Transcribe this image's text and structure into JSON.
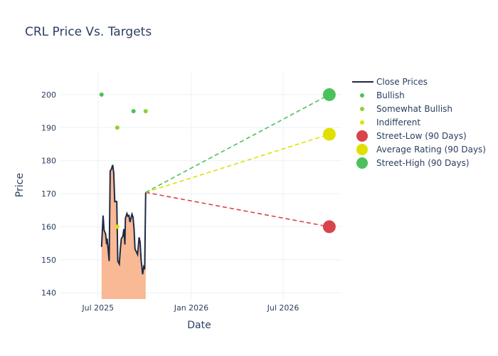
{
  "chart_data": {
    "type": "line",
    "title": "CRL Price Vs. Targets",
    "xlabel": "Date",
    "ylabel": "Price",
    "xlim": [
      "2025-04-18",
      "2026-10-24"
    ],
    "ylim": [
      138.1,
      207.1
    ],
    "grid": true,
    "legend_placement": "top-right",
    "x_ticks": [
      {
        "date": "2025-07-01",
        "label": "Jul 2025"
      },
      {
        "date": "2026-01-01",
        "label": "Jan 2026"
      },
      {
        "date": "2026-07-01",
        "label": "Jul 2026"
      }
    ],
    "y_ticks": [
      140,
      150,
      160,
      170,
      180,
      190,
      200
    ],
    "close_prices": {
      "name": "Close Prices",
      "color": "#1f2a44",
      "fill": "#f8b994",
      "dates": [
        "2025-07-08",
        "2025-07-11",
        "2025-07-13",
        "2025-07-16",
        "2025-07-18",
        "2025-07-19",
        "2025-07-23",
        "2025-07-25",
        "2025-07-27",
        "2025-07-30",
        "2025-08-01",
        "2025-08-03",
        "2025-08-06",
        "2025-08-07",
        "2025-08-09",
        "2025-08-12",
        "2025-08-14",
        "2025-08-16",
        "2025-08-19",
        "2025-08-21",
        "2025-08-23",
        "2025-08-24",
        "2025-08-27",
        "2025-08-29",
        "2025-08-31",
        "2025-09-02",
        "2025-09-06",
        "2025-09-08",
        "2025-09-10",
        "2025-09-12",
        "2025-09-14",
        "2025-09-17",
        "2025-09-20",
        "2025-09-22",
        "2025-09-24",
        "2025-09-27",
        "2025-09-29",
        "2025-10-01",
        "2025-10-03"
      ],
      "values": [
        153.9,
        163.4,
        158.9,
        157.8,
        154.7,
        156.4,
        149.6,
        176.9,
        177.3,
        178.7,
        176.3,
        167.6,
        167.7,
        167.6,
        149.6,
        148.7,
        153.2,
        156.4,
        157.1,
        159.3,
        154.6,
        162.5,
        164.0,
        163.2,
        163.4,
        161.4,
        163.8,
        162.9,
        159.6,
        153.2,
        152.6,
        151.6,
        156.8,
        155.3,
        149.9,
        145.6,
        147.8,
        147.1,
        170.4
      ]
    },
    "ratings": [
      {
        "name": "Bullish",
        "color": "#4cc15a",
        "points": [
          {
            "date": "2025-07-08",
            "value": 200
          },
          {
            "date": "2025-09-09",
            "value": 195
          }
        ]
      },
      {
        "name": "Somewhat Bullish",
        "color": "#8fd12e",
        "points": [
          {
            "date": "2025-08-08",
            "value": 190
          },
          {
            "date": "2025-10-03",
            "value": 195
          }
        ]
      },
      {
        "name": "Indifferent",
        "color": "#e0e000",
        "points": [
          {
            "date": "2025-08-08",
            "value": 160
          }
        ]
      }
    ],
    "targets": {
      "start": {
        "date": "2025-10-03",
        "value": 170.4
      },
      "end_date": "2026-09-30",
      "series": [
        {
          "name": "Street-Low (90 Days)",
          "value": 160,
          "color": "#d9434b"
        },
        {
          "name": "Average Rating (90 Days)",
          "value": 188,
          "color": "#e0e000"
        },
        {
          "name": "Street-High (90 Days)",
          "value": 200,
          "color": "#4cc15a"
        }
      ]
    }
  }
}
